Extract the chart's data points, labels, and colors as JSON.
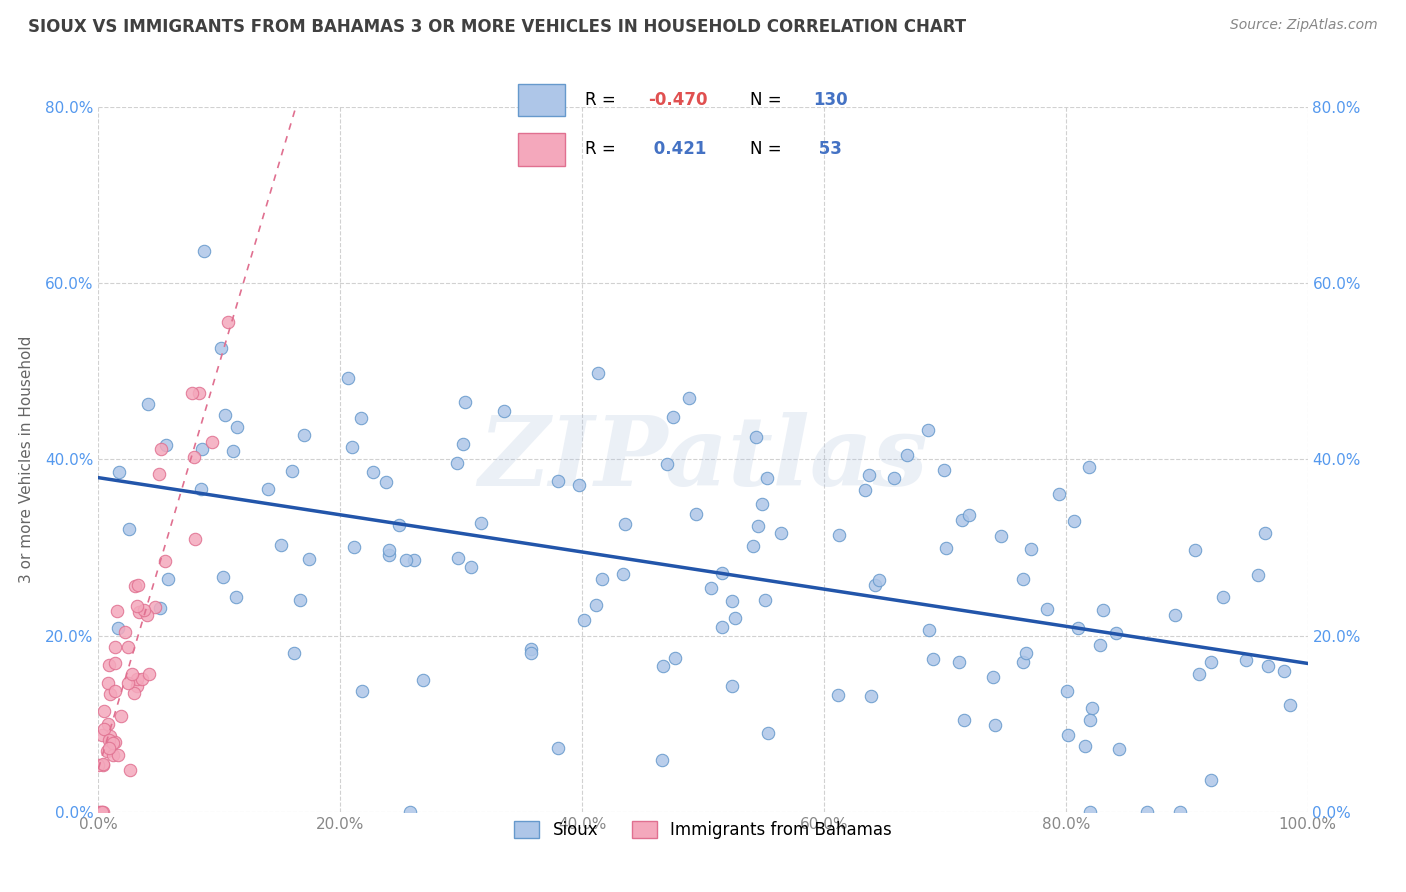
{
  "title": "SIOUX VS IMMIGRANTS FROM BAHAMAS 3 OR MORE VEHICLES IN HOUSEHOLD CORRELATION CHART",
  "source": "Source: ZipAtlas.com",
  "ylabel": "3 or more Vehicles in Household",
  "xmin": 0.0,
  "xmax": 100.0,
  "ymin": 0.0,
  "ymax": 80.0,
  "sioux_color": "#aec6e8",
  "bahamas_color": "#f4a8bc",
  "sioux_edge": "#6699cc",
  "bahamas_edge": "#e07090",
  "sioux_line_color": "#2255aa",
  "bahamas_line_color": "#e07090",
  "R_sioux": -0.47,
  "N_sioux": 130,
  "R_bahamas": 0.421,
  "N_bahamas": 53,
  "watermark": "ZIPatlas",
  "background_color": "#ffffff",
  "grid_color": "#cccccc",
  "title_color": "#404040",
  "legend_text_color": "#4472c4",
  "r_neg_color": "#e05050",
  "ytick_color": "#5599ee",
  "xtick_color": "#888888",
  "sioux_trend_start_y": 37.0,
  "sioux_trend_end_y": 17.0,
  "bahamas_trend_start_y": 3.0,
  "bahamas_trend_end_y": 53.0
}
